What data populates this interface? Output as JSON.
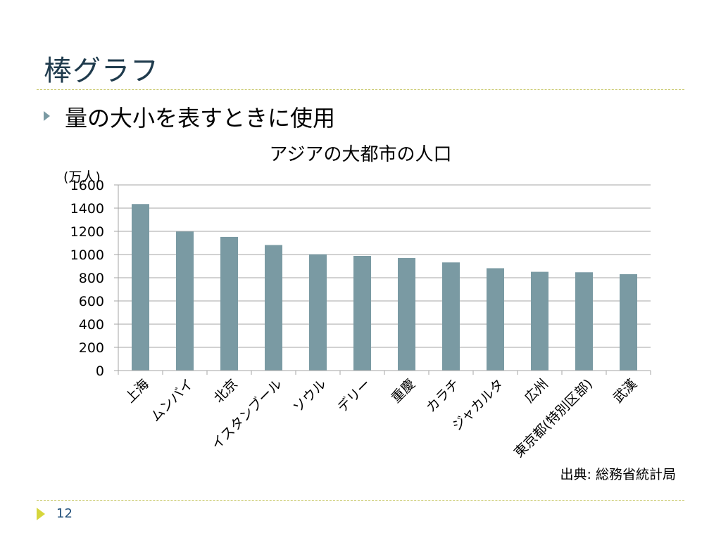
{
  "slide": {
    "title": "棒グラフ",
    "bullet": "量の大小を表すときに使用",
    "source": "出典: 総務省統計局",
    "page_number": "12"
  },
  "colors": {
    "bar": "#7a9aa3",
    "gridline": "#a6a6a6",
    "title_text": "#1f3b4d",
    "rule": "#c8c86a",
    "footer_accent": "#d6d63c"
  },
  "chart_data": {
    "type": "bar",
    "title": "アジアの大都市の人口",
    "ylabel": "(万人)",
    "xlabel": "",
    "ylim": [
      0,
      1600
    ],
    "yticks": [
      "0",
      "200",
      "400",
      "600",
      "800",
      "1000",
      "1200",
      "1400",
      "1600"
    ],
    "grid": true,
    "categories": [
      "上海",
      "ムンバイ",
      "北京",
      "イスタンブール",
      "ソウル",
      "デリー",
      "重慶",
      "カラチ",
      "ジャカルタ",
      "広州",
      "東京都(特別区部)",
      "武漢"
    ],
    "values": [
      1435,
      1198,
      1152,
      1082,
      1002,
      988,
      970,
      932,
      882,
      851,
      847,
      831
    ]
  }
}
